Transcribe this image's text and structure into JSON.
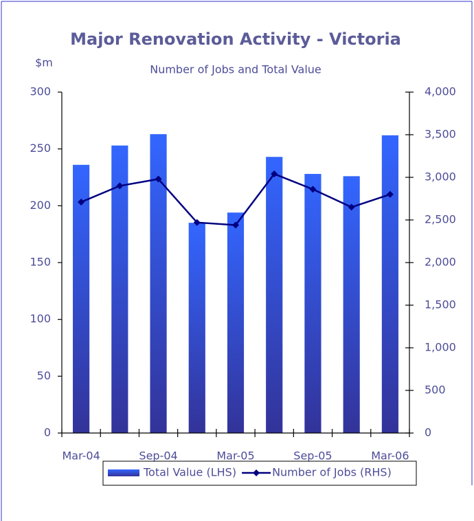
{
  "chart_data": {
    "type": "bar",
    "title": "Major Renovation Activity - Victoria",
    "subtitle": "Number of Jobs and Total Value",
    "y_label": "$m",
    "categories": [
      "Mar-04",
      null,
      "Sep-04",
      null,
      "Mar-05",
      null,
      "Sep-05",
      null,
      "Mar-06"
    ],
    "series": [
      {
        "name": "Total Value (LHS)",
        "type": "bar",
        "axis": "y",
        "color": "#3366ff",
        "values": [
          236,
          253,
          263,
          185,
          194,
          243,
          228,
          226,
          262
        ]
      },
      {
        "name": "Number of Jobs (RHS)",
        "type": "line",
        "axis": "y2",
        "color": "#000080",
        "values": [
          2710,
          2900,
          2980,
          2470,
          2440,
          3040,
          2860,
          2650,
          2800
        ]
      }
    ],
    "ylim": [
      0,
      300
    ],
    "yticks": [
      0,
      50,
      100,
      150,
      200,
      250,
      300
    ],
    "y2lim": [
      0,
      4000
    ],
    "y2ticks": [
      0,
      500,
      {
        "value": 1000,
        "label": "1,000"
      },
      {
        "value": 1500,
        "label": "1,500"
      },
      {
        "value": 2000,
        "label": "2,000"
      },
      {
        "value": 2500,
        "label": "2,500"
      },
      {
        "value": 3000,
        "label": "3,000"
      },
      {
        "value": 3500,
        "label": "3,500"
      },
      {
        "value": 4000,
        "label": "4,000"
      }
    ],
    "legend": "bottom"
  }
}
